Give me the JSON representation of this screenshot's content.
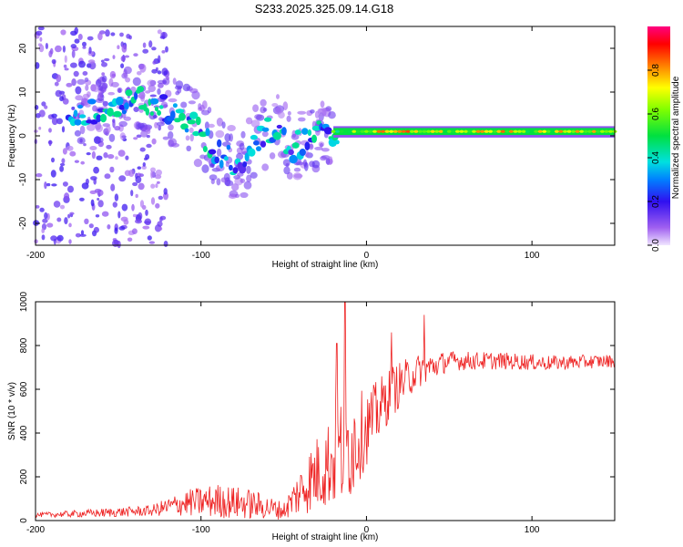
{
  "title": "S233.2025.325.09.14.G18",
  "spectrogram": {
    "type": "heatmap",
    "xlabel": "Height of straight line (km)",
    "ylabel": "Frequency (Hz)",
    "xlim": [
      -200,
      150
    ],
    "ylim": [
      -25,
      25
    ],
    "xticks": [
      -200,
      -100,
      0,
      100
    ],
    "yticks": [
      20,
      10,
      0,
      -10,
      -20
    ],
    "x_tick_labels": [
      "-200",
      "-100",
      "0",
      "100"
    ],
    "y_tick_labels": [
      "20",
      "10",
      "0",
      "-10",
      "-20"
    ],
    "colorbar": {
      "label": "Normalized spectral amplitude",
      "range": [
        0,
        1
      ],
      "ticks": [
        0.0,
        0.2,
        0.4,
        0.6,
        0.8
      ],
      "tick_labels": [
        "0.0",
        "0.2",
        "0.4",
        "0.6",
        "0.8"
      ]
    },
    "ridge": [
      {
        "x": -180,
        "f": 5,
        "a": 0.35
      },
      {
        "x": -165,
        "f": 5,
        "a": 0.45
      },
      {
        "x": -150,
        "f": 6,
        "a": 0.55
      },
      {
        "x": -140,
        "f": 8,
        "a": 0.6
      },
      {
        "x": -130,
        "f": 8,
        "a": 0.5
      },
      {
        "x": -115,
        "f": 5,
        "a": 0.55
      },
      {
        "x": -105,
        "f": 3,
        "a": 0.5
      },
      {
        "x": -95,
        "f": -2,
        "a": 0.45
      },
      {
        "x": -85,
        "f": -5,
        "a": 0.4
      },
      {
        "x": -75,
        "f": -7,
        "a": 0.4
      },
      {
        "x": -65,
        "f": 0,
        "a": 0.4
      },
      {
        "x": -55,
        "f": 2,
        "a": 0.45
      },
      {
        "x": -45,
        "f": -3,
        "a": 0.4
      },
      {
        "x": -35,
        "f": 0,
        "a": 0.5
      },
      {
        "x": -20,
        "f": 1,
        "a": 0.55
      },
      {
        "x": 0,
        "f": 1,
        "a": 0.7
      },
      {
        "x": 25,
        "f": 1,
        "a": 0.8
      },
      {
        "x": 50,
        "f": 1,
        "a": 0.65
      },
      {
        "x": 80,
        "f": 1,
        "a": 0.75
      },
      {
        "x": 100,
        "f": 1,
        "a": 0.65
      },
      {
        "x": 130,
        "f": 1,
        "a": 0.75
      },
      {
        "x": 150,
        "f": 1,
        "a": 0.8
      }
    ]
  },
  "snr": {
    "type": "line",
    "xlabel": "Height of straight line (km)",
    "ylabel": "SNR (10 * v/v)",
    "xlim": [
      -200,
      150
    ],
    "ylim": [
      0,
      1000
    ],
    "xticks": [
      -200,
      -100,
      0,
      100
    ],
    "yticks": [
      0,
      200,
      400,
      600,
      800,
      1000
    ],
    "x_tick_labels": [
      "-200",
      "-100",
      "0",
      "100"
    ],
    "y_tick_labels": [
      "0",
      "200",
      "400",
      "600",
      "800",
      "1000"
    ],
    "color": "#ee2222",
    "envelope": [
      {
        "x": -200,
        "mean": 25,
        "spread": 10
      },
      {
        "x": -160,
        "mean": 35,
        "spread": 20
      },
      {
        "x": -130,
        "mean": 45,
        "spread": 25
      },
      {
        "x": -110,
        "mean": 80,
        "spread": 60
      },
      {
        "x": -90,
        "mean": 90,
        "spread": 80
      },
      {
        "x": -70,
        "mean": 75,
        "spread": 70
      },
      {
        "x": -50,
        "mean": 45,
        "spread": 40
      },
      {
        "x": -35,
        "mean": 180,
        "spread": 150
      },
      {
        "x": -25,
        "mean": 250,
        "spread": 200
      },
      {
        "x": -12,
        "mean": 330,
        "spread": 280
      },
      {
        "x": 0,
        "mean": 420,
        "spread": 170
      },
      {
        "x": 15,
        "mean": 590,
        "spread": 120
      },
      {
        "x": 30,
        "mean": 680,
        "spread": 80
      },
      {
        "x": 50,
        "mean": 730,
        "spread": 45
      },
      {
        "x": 80,
        "mean": 730,
        "spread": 40
      },
      {
        "x": 110,
        "mean": 720,
        "spread": 35
      },
      {
        "x": 150,
        "mean": 730,
        "spread": 30
      }
    ],
    "peaks": [
      {
        "x": -13,
        "y": 1000
      },
      {
        "x": -18,
        "y": 810
      },
      {
        "x": 35,
        "y": 940
      },
      {
        "x": 15,
        "y": 860
      }
    ]
  }
}
